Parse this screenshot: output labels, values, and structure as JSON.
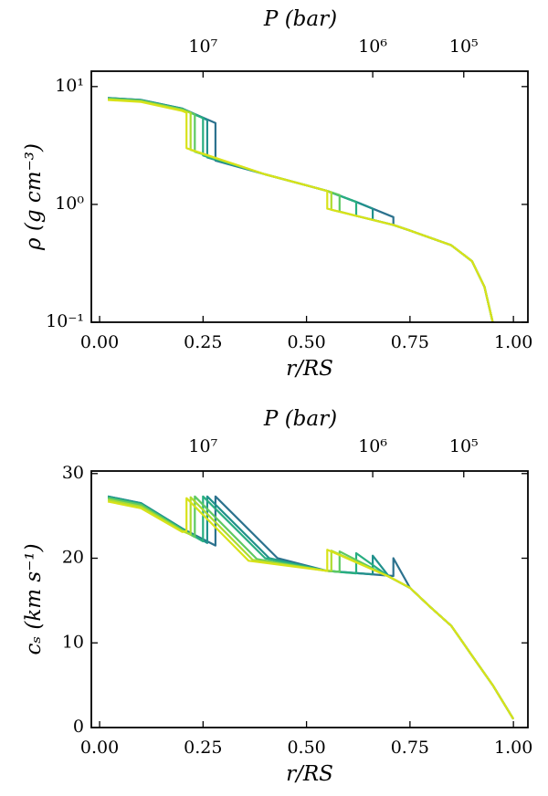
{
  "chart_data": [
    {
      "type": "line",
      "x_label": "r/RS",
      "y_label": "ρ (g cm⁻³)",
      "x2_label": "P (bar)",
      "xlim": [
        -0.02,
        1.035
      ],
      "ylim": [
        0.1,
        13.5
      ],
      "ylog": true,
      "xticks": [
        {
          "value": 0,
          "label": "0.00"
        },
        {
          "value": 0.25,
          "label": "0.25"
        },
        {
          "value": 0.5,
          "label": "0.50"
        },
        {
          "value": 0.75,
          "label": "0.75"
        },
        {
          "value": 1,
          "label": "1.00"
        }
      ],
      "yticks": [
        {
          "value": 0.1,
          "label": "10⁻¹"
        },
        {
          "value": 1,
          "label": "10⁰"
        },
        {
          "value": 10,
          "label": "10¹"
        }
      ],
      "x2ticks": [
        {
          "value": 10000000,
          "label": "10⁷",
          "r": 0.25
        },
        {
          "value": 1000000,
          "label": "10⁶",
          "r": 0.66
        },
        {
          "value": 100000,
          "label": "10⁵",
          "r": 0.88
        }
      ],
      "series": [
        {
          "color": "#2c728e",
          "x": [
            0.02,
            0.1,
            0.2,
            0.28,
            0.28,
            0.4,
            0.5,
            0.55,
            0.62,
            0.71,
            0.71,
            0.75,
            0.85,
            0.9,
            0.93,
            0.95
          ],
          "values": [
            8.0,
            7.7,
            6.5,
            4.9,
            2.35,
            1.8,
            1.45,
            1.3,
            1.05,
            0.78,
            0.67,
            0.6,
            0.45,
            0.33,
            0.2,
            0.1
          ]
        },
        {
          "color": "#21918c",
          "x": [
            0.02,
            0.1,
            0.2,
            0.26,
            0.26,
            0.4,
            0.5,
            0.55,
            0.62,
            0.66,
            0.66,
            0.71,
            0.75,
            0.85,
            0.9,
            0.93,
            0.95
          ],
          "values": [
            8.0,
            7.7,
            6.5,
            5.2,
            2.5,
            1.8,
            1.45,
            1.3,
            1.05,
            0.92,
            0.74,
            0.67,
            0.6,
            0.45,
            0.33,
            0.2,
            0.1
          ]
        },
        {
          "color": "#28ae80",
          "x": [
            0.02,
            0.1,
            0.2,
            0.25,
            0.25,
            0.4,
            0.5,
            0.55,
            0.62,
            0.62,
            0.66,
            0.71,
            0.75,
            0.85,
            0.9,
            0.93,
            0.95
          ],
          "values": [
            7.9,
            7.6,
            6.4,
            5.4,
            2.6,
            1.8,
            1.45,
            1.3,
            1.05,
            0.8,
            0.74,
            0.67,
            0.6,
            0.45,
            0.33,
            0.2,
            0.1
          ]
        },
        {
          "color": "#5ec962",
          "x": [
            0.02,
            0.1,
            0.2,
            0.23,
            0.23,
            0.4,
            0.5,
            0.55,
            0.58,
            0.58,
            0.62,
            0.71,
            0.75,
            0.85,
            0.9,
            0.93,
            0.95
          ],
          "values": [
            7.9,
            7.6,
            6.4,
            5.8,
            2.8,
            1.8,
            1.45,
            1.3,
            1.2,
            0.87,
            0.8,
            0.67,
            0.6,
            0.45,
            0.33,
            0.2,
            0.1
          ]
        },
        {
          "color": "#addc30",
          "x": [
            0.02,
            0.1,
            0.2,
            0.22,
            0.22,
            0.4,
            0.5,
            0.56,
            0.56,
            0.62,
            0.71,
            0.75,
            0.85,
            0.9,
            0.93,
            0.95
          ],
          "values": [
            7.8,
            7.5,
            6.3,
            6.0,
            2.9,
            1.8,
            1.45,
            1.27,
            0.9,
            0.8,
            0.67,
            0.6,
            0.45,
            0.33,
            0.2,
            0.1
          ]
        },
        {
          "color": "#d8e219",
          "x": [
            0.02,
            0.1,
            0.2,
            0.21,
            0.21,
            0.4,
            0.5,
            0.55,
            0.55,
            0.62,
            0.71,
            0.75,
            0.85,
            0.9,
            0.93,
            0.95
          ],
          "values": [
            7.7,
            7.4,
            6.2,
            6.0,
            3.0,
            1.8,
            1.45,
            1.3,
            0.92,
            0.8,
            0.67,
            0.6,
            0.45,
            0.33,
            0.2,
            0.1
          ]
        }
      ]
    },
    {
      "type": "line",
      "x_label": "r/RS",
      "y_label": "cₛ (km s⁻¹)",
      "x2_label": "P (bar)",
      "xlim": [
        -0.02,
        1.035
      ],
      "ylim": [
        0,
        30.3
      ],
      "ylog": false,
      "xticks": [
        {
          "value": 0,
          "label": "0.00"
        },
        {
          "value": 0.25,
          "label": "0.25"
        },
        {
          "value": 0.5,
          "label": "0.50"
        },
        {
          "value": 0.75,
          "label": "0.75"
        },
        {
          "value": 1,
          "label": "1.00"
        }
      ],
      "yticks": [
        0,
        10,
        20,
        30
      ],
      "x2ticks": [
        {
          "value": 10000000,
          "label": "10⁷",
          "r": 0.25
        },
        {
          "value": 1000000,
          "label": "10⁶",
          "r": 0.66
        },
        {
          "value": 100000,
          "label": "10⁵",
          "r": 0.88
        }
      ],
      "series": [
        {
          "color": "#2c728e",
          "x": [
            0.02,
            0.1,
            0.2,
            0.28,
            0.28,
            0.43,
            0.55,
            0.71,
            0.71,
            0.75,
            0.8,
            0.85,
            0.9,
            0.95,
            1.0
          ],
          "values": [
            27.3,
            26.5,
            23.5,
            21.5,
            27.3,
            20,
            18.5,
            17.9,
            20.0,
            16.5,
            14.2,
            12,
            8.5,
            5,
            1
          ]
        },
        {
          "color": "#21918c",
          "x": [
            0.02,
            0.1,
            0.2,
            0.26,
            0.26,
            0.41,
            0.55,
            0.66,
            0.66,
            0.7,
            0.75,
            0.8,
            0.85,
            0.9,
            0.95,
            1.0
          ],
          "values": [
            27.3,
            26.5,
            23.5,
            21.8,
            27.3,
            20,
            18.5,
            18.1,
            20.3,
            17.8,
            16.5,
            14.2,
            12,
            8.5,
            5,
            1
          ]
        },
        {
          "color": "#28ae80",
          "x": [
            0.02,
            0.1,
            0.2,
            0.25,
            0.25,
            0.4,
            0.55,
            0.62,
            0.62,
            0.7,
            0.75,
            0.8,
            0.85,
            0.9,
            0.95,
            1.0
          ],
          "values": [
            27.2,
            26.4,
            23.4,
            22,
            27.3,
            20,
            18.5,
            18.2,
            20.6,
            17.8,
            16.5,
            14.2,
            12,
            8.5,
            5,
            1
          ]
        },
        {
          "color": "#5ec962",
          "x": [
            0.02,
            0.1,
            0.2,
            0.23,
            0.23,
            0.38,
            0.55,
            0.58,
            0.58,
            0.7,
            0.75,
            0.8,
            0.85,
            0.9,
            0.95,
            1.0
          ],
          "values": [
            27.1,
            26.3,
            23.3,
            22.5,
            27.3,
            19.9,
            18.5,
            18.4,
            20.8,
            17.8,
            16.5,
            14.2,
            12,
            8.5,
            5,
            1
          ]
        },
        {
          "color": "#addc30",
          "x": [
            0.02,
            0.1,
            0.2,
            0.22,
            0.22,
            0.37,
            0.55,
            0.56,
            0.56,
            0.7,
            0.75,
            0.8,
            0.85,
            0.9,
            0.95,
            1.0
          ],
          "values": [
            26.9,
            26.1,
            23.2,
            22.8,
            27.2,
            19.8,
            18.5,
            18.5,
            20.9,
            17.8,
            16.5,
            14.2,
            12,
            8.5,
            5,
            1
          ]
        },
        {
          "color": "#d8e219",
          "x": [
            0.02,
            0.1,
            0.2,
            0.21,
            0.21,
            0.36,
            0.55,
            0.55,
            0.7,
            0.75,
            0.8,
            0.85,
            0.9,
            0.95,
            1.0
          ],
          "values": [
            26.7,
            25.9,
            23.1,
            23.2,
            27.1,
            19.7,
            18.5,
            21,
            17.8,
            16.5,
            14.2,
            12,
            8.5,
            5,
            1
          ]
        }
      ]
    }
  ]
}
